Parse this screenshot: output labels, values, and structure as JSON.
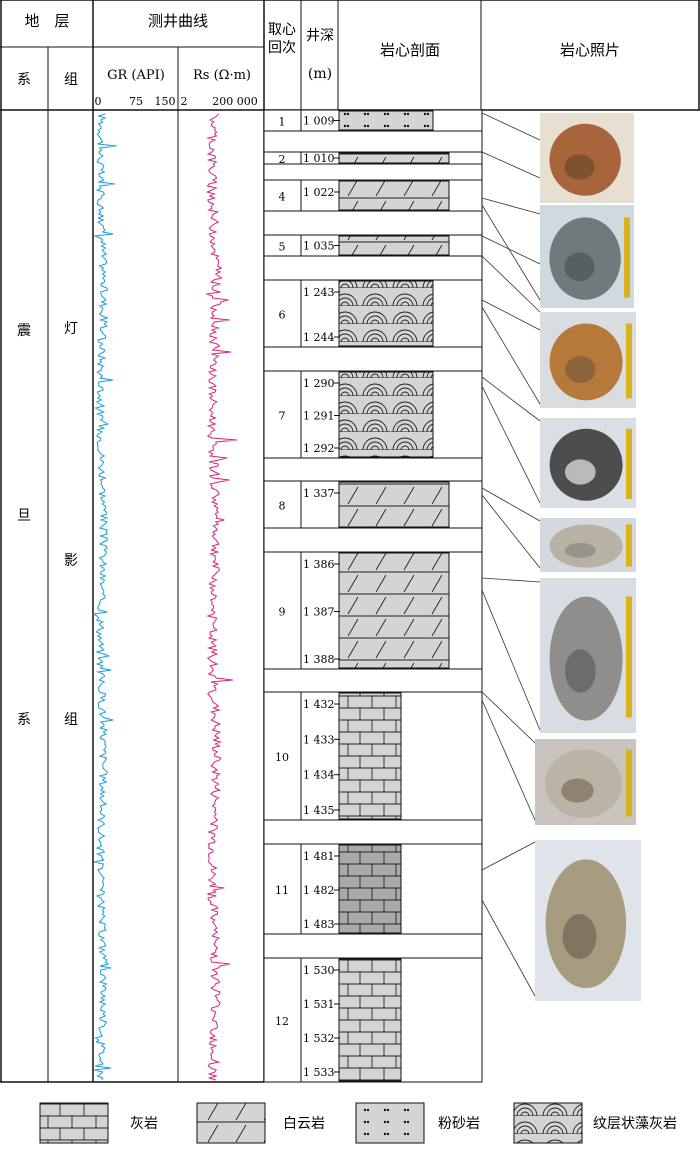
{
  "header": {
    "strata": "地　层",
    "logging_curves": "测井曲线",
    "core_run": "取心回次",
    "well_depth": "井深(m)",
    "core_profile": "岩心剖面",
    "core_photo": "岩心照片",
    "system": "系",
    "formation": "组",
    "gr_label": "GR (API)",
    "rs_label": "Rs (Ω·m)",
    "gr_ticks": [
      "0",
      "75",
      "150"
    ],
    "rs_ticks": [
      "2",
      "200 000"
    ]
  },
  "strata": {
    "system_chars": [
      "震",
      "旦",
      "系"
    ],
    "formation_chars": [
      "灯",
      "影",
      "组"
    ]
  },
  "runs": [
    {
      "num": "1",
      "depths": [
        "1 009"
      ],
      "lith": "siltstone"
    },
    {
      "num": "2",
      "depths": [
        "1 010"
      ],
      "lith": "dolomite"
    },
    {
      "num": "4",
      "depths": [
        "1 022"
      ],
      "lith": "dolomite"
    },
    {
      "num": "5",
      "depths": [
        "1 035"
      ],
      "lith": "dolomite"
    },
    {
      "num": "6",
      "depths": [
        "1 243",
        "1 244"
      ],
      "lith": "algal"
    },
    {
      "num": "7",
      "depths": [
        "1 290",
        "1 291",
        "1 292"
      ],
      "lith": "algal"
    },
    {
      "num": "8",
      "depths": [
        "1 337"
      ],
      "lith": "dolomite"
    },
    {
      "num": "9",
      "depths": [
        "1 386",
        "1 387",
        "1 388"
      ],
      "lith": "dolomite"
    },
    {
      "num": "10",
      "depths": [
        "1 432",
        "1 433",
        "1 434",
        "1 435"
      ],
      "lith": "limestone"
    },
    {
      "num": "11",
      "depths": [
        "1 481",
        "1 482",
        "1 483"
      ],
      "lith": "limestone-dark"
    },
    {
      "num": "12",
      "depths": [
        "1 530",
        "1 531",
        "1 532",
        "1 533"
      ],
      "lith": "limestone"
    }
  ],
  "legend": [
    {
      "key": "limestone",
      "label": "灰岩"
    },
    {
      "key": "dolomite",
      "label": "白云岩"
    },
    {
      "key": "siltstone",
      "label": "粉砂岩"
    },
    {
      "key": "algal",
      "label": "纹层状藻灰岩"
    }
  ],
  "colors": {
    "gr_curve": "#1a9bd7",
    "rs_curve": "#d6247a",
    "lith_fill": "#d4d4d4",
    "lith_fill_dark": "#a9a9a9"
  },
  "photos": [
    {
      "name": "core-photo-1",
      "tone": "tan-brown"
    },
    {
      "name": "core-photo-2",
      "tone": "grey-blue"
    },
    {
      "name": "core-photo-3",
      "tone": "orange-brown"
    },
    {
      "name": "core-photo-4",
      "tone": "dark-grey-white"
    },
    {
      "name": "core-photo-5",
      "tone": "light-grey"
    },
    {
      "name": "core-photo-6",
      "tone": "grey"
    },
    {
      "name": "core-photo-7",
      "tone": "light-grey-brown"
    },
    {
      "name": "core-photo-8",
      "tone": "beige-sky"
    }
  ]
}
